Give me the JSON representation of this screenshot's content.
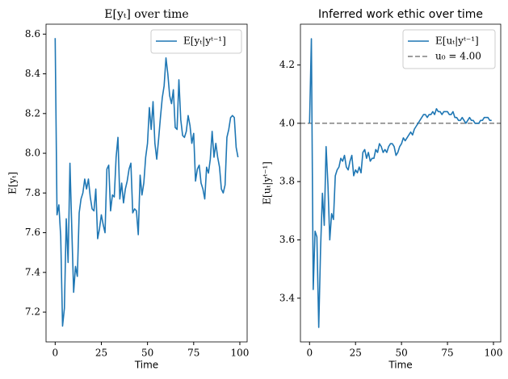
{
  "chart_data": [
    {
      "type": "line",
      "title": "E[yₜ] over time",
      "xlabel": "Time",
      "ylabel": "E[yₜ]",
      "x": [
        0,
        1,
        2,
        3,
        4,
        5,
        6,
        7,
        8,
        9,
        10,
        11,
        12,
        13,
        14,
        15,
        16,
        17,
        18,
        19,
        20,
        21,
        22,
        23,
        24,
        25,
        26,
        27,
        28,
        29,
        30,
        31,
        32,
        33,
        34,
        35,
        36,
        37,
        38,
        39,
        40,
        41,
        42,
        43,
        44,
        45,
        46,
        47,
        48,
        49,
        50,
        51,
        52,
        53,
        54,
        55,
        56,
        57,
        58,
        59,
        60,
        61,
        62,
        63,
        64,
        65,
        66,
        67,
        68,
        69,
        70,
        71,
        72,
        73,
        74,
        75,
        76,
        77,
        78,
        79,
        80,
        81,
        82,
        83,
        84,
        85,
        86,
        87,
        88,
        89,
        90,
        91,
        92,
        93,
        94,
        95,
        96,
        97,
        98,
        99
      ],
      "series": [
        {
          "name": "E[yₜ|yᵗ⁻¹]",
          "color": "#1f77b4",
          "values": [
            8.58,
            7.69,
            7.74,
            7.58,
            7.13,
            7.22,
            7.67,
            7.45,
            7.95,
            7.62,
            7.3,
            7.43,
            7.38,
            7.7,
            7.77,
            7.8,
            7.87,
            7.82,
            7.87,
            7.78,
            7.72,
            7.71,
            7.82,
            7.57,
            7.62,
            7.69,
            7.64,
            7.6,
            7.92,
            7.94,
            7.71,
            7.79,
            7.78,
            7.98,
            8.08,
            7.77,
            7.85,
            7.75,
            7.82,
            7.86,
            7.92,
            7.95,
            7.7,
            7.72,
            7.71,
            7.59,
            7.89,
            7.79,
            7.85,
            7.98,
            8.05,
            8.23,
            8.12,
            8.26,
            8.05,
            7.97,
            8.07,
            8.18,
            8.28,
            8.34,
            8.48,
            8.4,
            8.29,
            8.25,
            8.32,
            8.13,
            8.12,
            8.37,
            8.17,
            8.09,
            8.08,
            8.11,
            8.19,
            8.14,
            8.05,
            8.1,
            7.86,
            7.92,
            7.94,
            7.85,
            7.82,
            7.77,
            7.93,
            7.9,
            7.97,
            8.11,
            7.98,
            8.05,
            7.98,
            7.93,
            7.82,
            7.8,
            7.84,
            8.08,
            8.12,
            8.18,
            8.19,
            8.18,
            8.03,
            7.98
          ]
        }
      ],
      "xlim": [
        -4.95,
        103.95
      ],
      "xticks": [
        0,
        25,
        50,
        75,
        100
      ],
      "ylim": [
        7.05,
        8.65
      ],
      "yticks": [
        7.2,
        7.4,
        7.6,
        7.8,
        {
          "value": 8,
          "label": "8.0"
        },
        8.2,
        8.4,
        8.6
      ],
      "legend": "upper right"
    },
    {
      "type": "line",
      "title": "Inferred work ethic over time",
      "xlabel": "Time",
      "ylabel": "E[uₜ|yᵗ⁻¹]",
      "x": [
        0,
        1,
        2,
        3,
        4,
        5,
        6,
        7,
        8,
        9,
        10,
        11,
        12,
        13,
        14,
        15,
        16,
        17,
        18,
        19,
        20,
        21,
        22,
        23,
        24,
        25,
        26,
        27,
        28,
        29,
        30,
        31,
        32,
        33,
        34,
        35,
        36,
        37,
        38,
        39,
        40,
        41,
        42,
        43,
        44,
        45,
        46,
        47,
        48,
        49,
        50,
        51,
        52,
        53,
        54,
        55,
        56,
        57,
        58,
        59,
        60,
        61,
        62,
        63,
        64,
        65,
        66,
        67,
        68,
        69,
        70,
        71,
        72,
        73,
        74,
        75,
        76,
        77,
        78,
        79,
        80,
        81,
        82,
        83,
        84,
        85,
        86,
        87,
        88,
        89,
        90,
        91,
        92,
        93,
        94,
        95,
        96,
        97,
        98,
        99
      ],
      "series": [
        {
          "name": "E[uₜ|yᵗ⁻¹]",
          "color": "#1f77b4",
          "values": [
            4.0,
            4.29,
            3.43,
            3.63,
            3.61,
            3.3,
            3.57,
            3.76,
            3.65,
            3.92,
            3.79,
            3.6,
            3.69,
            3.67,
            3.82,
            3.84,
            3.85,
            3.88,
            3.87,
            3.89,
            3.85,
            3.84,
            3.87,
            3.89,
            3.82,
            3.84,
            3.83,
            3.85,
            3.83,
            3.9,
            3.91,
            3.88,
            3.9,
            3.87,
            3.88,
            3.88,
            3.91,
            3.9,
            3.93,
            3.92,
            3.9,
            3.91,
            3.9,
            3.92,
            3.93,
            3.93,
            3.92,
            3.89,
            3.9,
            3.92,
            3.93,
            3.95,
            3.94,
            3.95,
            3.96,
            3.97,
            3.96,
            3.98,
            3.99,
            4.0,
            4.01,
            4.02,
            4.03,
            4.03,
            4.02,
            4.03,
            4.03,
            4.04,
            4.03,
            4.05,
            4.04,
            4.04,
            4.03,
            4.04,
            4.04,
            4.04,
            4.03,
            4.03,
            4.04,
            4.02,
            4.02,
            4.01,
            4.01,
            4.02,
            4.01,
            4.0,
            4.01,
            4.02,
            4.01,
            4.01,
            4.0,
            4.0,
            4.0,
            4.01,
            4.01,
            4.02,
            4.02,
            4.02,
            4.01,
            4.01
          ]
        }
      ],
      "reference_lines": [
        {
          "name": "u₀ = 4.00",
          "value": 4,
          "color": "#808080",
          "style": "dashed"
        }
      ],
      "xlim": [
        -4.95,
        103.95
      ],
      "xticks": [
        0,
        25,
        50,
        75,
        100
      ],
      "ylim": [
        3.25,
        4.34
      ],
      "yticks": [
        3.4,
        3.6,
        3.8,
        {
          "value": 4,
          "label": "4.0"
        },
        4.2
      ],
      "legend": "upper right"
    }
  ]
}
